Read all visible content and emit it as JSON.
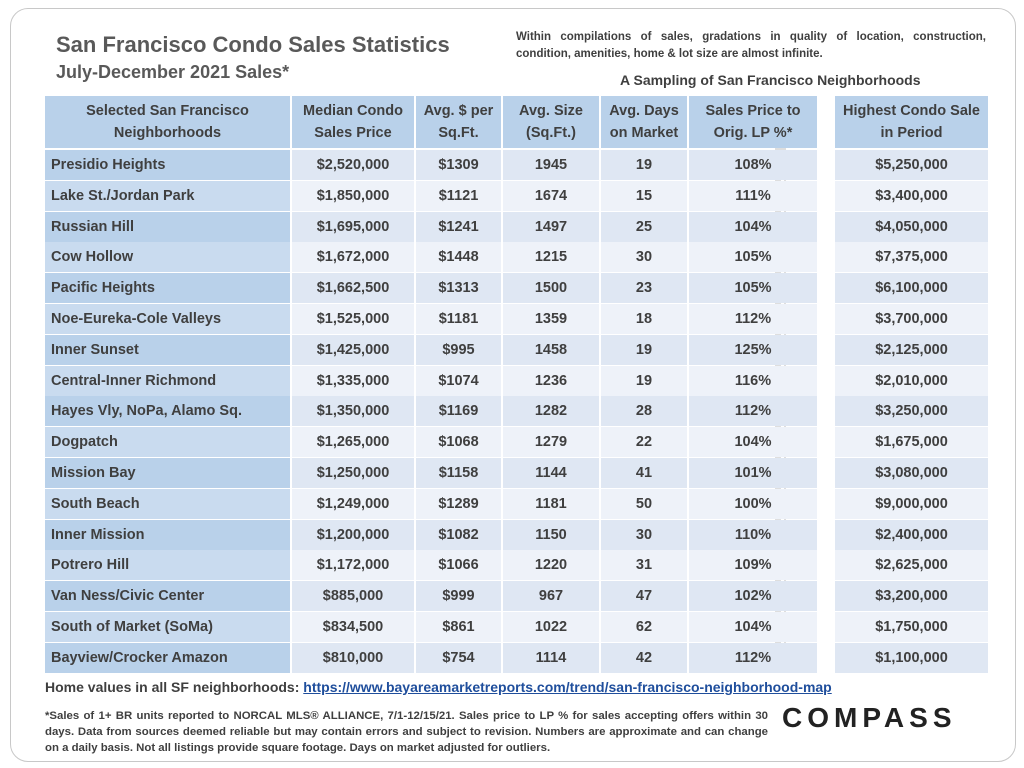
{
  "header": {
    "title": "San Francisco Condo Sales Statistics",
    "subtitle": "July-December 2021 Sales*",
    "note": "Within compilations of sales, gradations in quality of location, construction, condition, amenities, home & lot size are almost infinite.",
    "sampling": "A Sampling of San Francisco Neighborhoods"
  },
  "table": {
    "columns": [
      "Selected San Francisco Neighborhoods",
      "Median Condo Sales Price",
      "Avg. $ per Sq.Ft.",
      "Avg. Size (Sq.Ft.)",
      "Avg. Days on Market",
      "Sales Price to Orig. LP %*",
      "Highest Condo Sale in Period"
    ],
    "rows": [
      [
        "Presidio Heights",
        "$2,520,000",
        "$1309",
        "1945",
        "19",
        "108%",
        "$5,250,000"
      ],
      [
        "Lake St./Jordan Park",
        "$1,850,000",
        "$1121",
        "1674",
        "15",
        "111%",
        "$3,400,000"
      ],
      [
        "Russian Hill",
        "$1,695,000",
        "$1241",
        "1497",
        "25",
        "104%",
        "$4,050,000"
      ],
      [
        "Cow Hollow",
        "$1,672,000",
        "$1448",
        "1215",
        "30",
        "105%",
        "$7,375,000"
      ],
      [
        "Pacific Heights",
        "$1,662,500",
        "$1313",
        "1500",
        "23",
        "105%",
        "$6,100,000"
      ],
      [
        "Noe-Eureka-Cole Valleys",
        "$1,525,000",
        "$1181",
        "1359",
        "18",
        "112%",
        "$3,700,000"
      ],
      [
        "Inner Sunset",
        "$1,425,000",
        "$995",
        "1458",
        "19",
        "125%",
        "$2,125,000"
      ],
      [
        "Central-Inner Richmond",
        "$1,335,000",
        "$1074",
        "1236",
        "19",
        "116%",
        "$2,010,000"
      ],
      [
        "Hayes Vly, NoPa, Alamo Sq.",
        "$1,350,000",
        "$1169",
        "1282",
        "28",
        "112%",
        "$3,250,000"
      ],
      [
        "Dogpatch",
        "$1,265,000",
        "$1068",
        "1279",
        "22",
        "104%",
        "$1,675,000"
      ],
      [
        "Mission Bay",
        "$1,250,000",
        "$1158",
        "1144",
        "41",
        "101%",
        "$3,080,000"
      ],
      [
        "South Beach",
        "$1,249,000",
        "$1289",
        "1181",
        "50",
        "100%",
        "$9,000,000"
      ],
      [
        "Inner Mission",
        "$1,200,000",
        "$1082",
        "1150",
        "30",
        "110%",
        "$2,400,000"
      ],
      [
        "Potrero Hill",
        "$1,172,000",
        "$1066",
        "1220",
        "31",
        "109%",
        "$2,625,000"
      ],
      [
        "Van Ness/Civic Center",
        "$885,000",
        "$999",
        "967",
        "47",
        "102%",
        "$3,200,000"
      ],
      [
        "South of Market (SoMa)",
        "$834,500",
        "$861",
        "1022",
        "62",
        "104%",
        "$1,750,000"
      ],
      [
        "Bayview/Crocker Amazon",
        "$810,000",
        "$754",
        "1114",
        "42",
        "112%",
        "$1,100,000"
      ]
    ]
  },
  "footer": {
    "link_prefix": "Home values in all SF neighborhoods: ",
    "link_text": "https://www.bayareamarketreports.com/trend/san-francisco-neighborhood-map",
    "disclaimer": "*Sales of 1+ BR units reported to NORCAL MLS® ALLIANCE, 7/1-12/15/21. Sales price to LP % for sales accepting offers within 30 days. Data from sources deemed reliable but may contain errors and subject to revision. Numbers are approximate and can change on a daily basis. Not all listings provide square footage. Days on market adjusted for outliers.",
    "logo": "COMPASS"
  },
  "colors": {
    "header_fill": "#b9d1ea",
    "row_light": "#eef2f9",
    "row_dark": "#dfe7f3",
    "link": "#1f4e9c"
  }
}
